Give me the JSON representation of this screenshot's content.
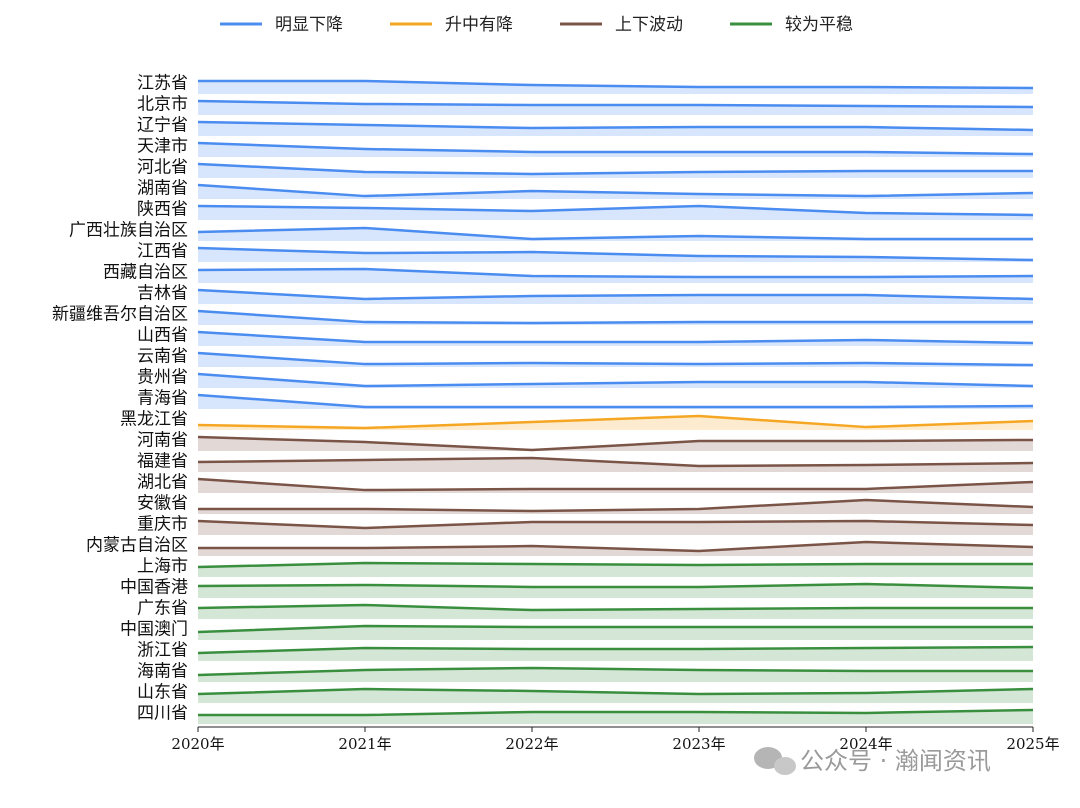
{
  "chart_data": {
    "type": "ridgeline",
    "categories": [
      "2020年",
      "2021年",
      "2022年",
      "2023年",
      "2024年",
      "2025年"
    ],
    "series": [
      {
        "name": "明显下降",
        "color": "#4a8cf0",
        "rows": [
          {
            "name": "江苏省",
            "values": [
              0.93,
              0.93,
              0.64,
              0.5,
              0.5,
              0.43
            ]
          },
          {
            "name": "北京市",
            "values": [
              1.0,
              0.79,
              0.71,
              0.71,
              0.64,
              0.57
            ]
          },
          {
            "name": "辽宁省",
            "values": [
              1.0,
              0.79,
              0.57,
              0.64,
              0.64,
              0.43
            ]
          },
          {
            "name": "天津市",
            "values": [
              1.0,
              0.57,
              0.36,
              0.36,
              0.36,
              0.21
            ]
          },
          {
            "name": "河北省",
            "values": [
              1.0,
              0.43,
              0.29,
              0.43,
              0.5,
              0.5
            ]
          },
          {
            "name": "湖南省",
            "values": [
              1.0,
              0.21,
              0.57,
              0.36,
              0.21,
              0.43
            ]
          },
          {
            "name": "陕西省",
            "values": [
              1.0,
              0.86,
              0.64,
              1.0,
              0.5,
              0.36
            ]
          },
          {
            "name": "广西壮族自治区",
            "values": [
              0.64,
              0.93,
              0.14,
              0.36,
              0.14,
              0.14
            ]
          },
          {
            "name": "江西省",
            "values": [
              1.0,
              0.64,
              0.71,
              0.43,
              0.36,
              0.14
            ]
          },
          {
            "name": "西藏自治区",
            "values": [
              0.93,
              1.0,
              0.5,
              0.43,
              0.43,
              0.5
            ]
          },
          {
            "name": "吉林省",
            "values": [
              1.0,
              0.36,
              0.57,
              0.64,
              0.64,
              0.36
            ]
          },
          {
            "name": "新疆维吾尔自治区",
            "values": [
              1.0,
              0.21,
              0.14,
              0.21,
              0.21,
              0.21
            ]
          },
          {
            "name": "山西省",
            "values": [
              1.0,
              0.29,
              0.29,
              0.29,
              0.43,
              0.21
            ]
          },
          {
            "name": "云南省",
            "values": [
              1.0,
              0.21,
              0.29,
              0.21,
              0.29,
              0.14
            ]
          },
          {
            "name": "贵州省",
            "values": [
              1.0,
              0.14,
              0.29,
              0.43,
              0.43,
              0.14
            ]
          },
          {
            "name": "青海省",
            "values": [
              1.0,
              0.14,
              0.14,
              0.14,
              0.14,
              0.21
            ]
          }
        ]
      },
      {
        "name": "升中有降",
        "color": "#f5a623",
        "rows": [
          {
            "name": "黑龙江省",
            "values": [
              0.36,
              0.14,
              0.57,
              1.0,
              0.21,
              0.64
            ]
          }
        ]
      },
      {
        "name": "上下波动",
        "color": "#7b5448",
        "rows": [
          {
            "name": "河南省",
            "values": [
              1.0,
              0.64,
              0.07,
              0.71,
              0.71,
              0.79
            ]
          },
          {
            "name": "福建省",
            "values": [
              0.71,
              0.86,
              1.0,
              0.43,
              0.5,
              0.64
            ]
          },
          {
            "name": "湖北省",
            "values": [
              1.0,
              0.21,
              0.29,
              0.29,
              0.29,
              0.79
            ]
          },
          {
            "name": "安徽省",
            "values": [
              0.36,
              0.36,
              0.21,
              0.36,
              1.0,
              0.5
            ]
          },
          {
            "name": "重庆市",
            "values": [
              1.0,
              0.5,
              0.93,
              0.93,
              1.0,
              0.71
            ]
          },
          {
            "name": "内蒙古自治区",
            "values": [
              0.57,
              0.57,
              0.71,
              0.36,
              1.0,
              0.64
            ]
          }
        ]
      },
      {
        "name": "较为平稳",
        "color": "#3a8f3f",
        "rows": [
          {
            "name": "上海市",
            "values": [
              0.71,
              1.0,
              0.93,
              0.86,
              0.93,
              0.93
            ]
          },
          {
            "name": "中国香港",
            "values": [
              0.86,
              0.93,
              0.79,
              0.79,
              1.0,
              0.71
            ]
          },
          {
            "name": "广东省",
            "values": [
              0.79,
              1.0,
              0.64,
              0.71,
              0.79,
              0.79
            ]
          },
          {
            "name": "中国澳门",
            "values": [
              0.57,
              1.0,
              0.93,
              0.93,
              0.93,
              0.93
            ]
          },
          {
            "name": "浙江省",
            "values": [
              0.57,
              0.93,
              0.86,
              0.86,
              0.93,
              1.0
            ]
          },
          {
            "name": "海南省",
            "values": [
              0.5,
              0.86,
              1.0,
              0.86,
              0.79,
              0.79
            ]
          },
          {
            "name": "山东省",
            "values": [
              0.64,
              1.0,
              0.86,
              0.64,
              0.71,
              1.0
            ]
          },
          {
            "name": "四川省",
            "values": [
              0.64,
              0.64,
              0.86,
              0.86,
              0.79,
              1.0
            ]
          }
        ]
      }
    ],
    "watermark": "公众号 · 瀚闻资讯"
  }
}
